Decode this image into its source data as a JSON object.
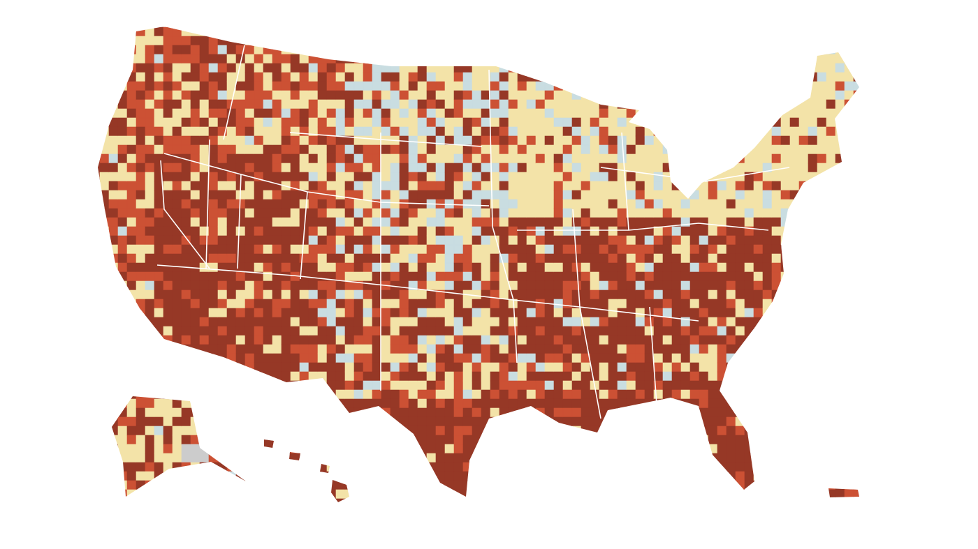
{
  "map": {
    "colors": [
      "#963826",
      "#cc5134",
      "#f3e3a8",
      "#c9dde1",
      "#cccccc"
    ]
  }
}
